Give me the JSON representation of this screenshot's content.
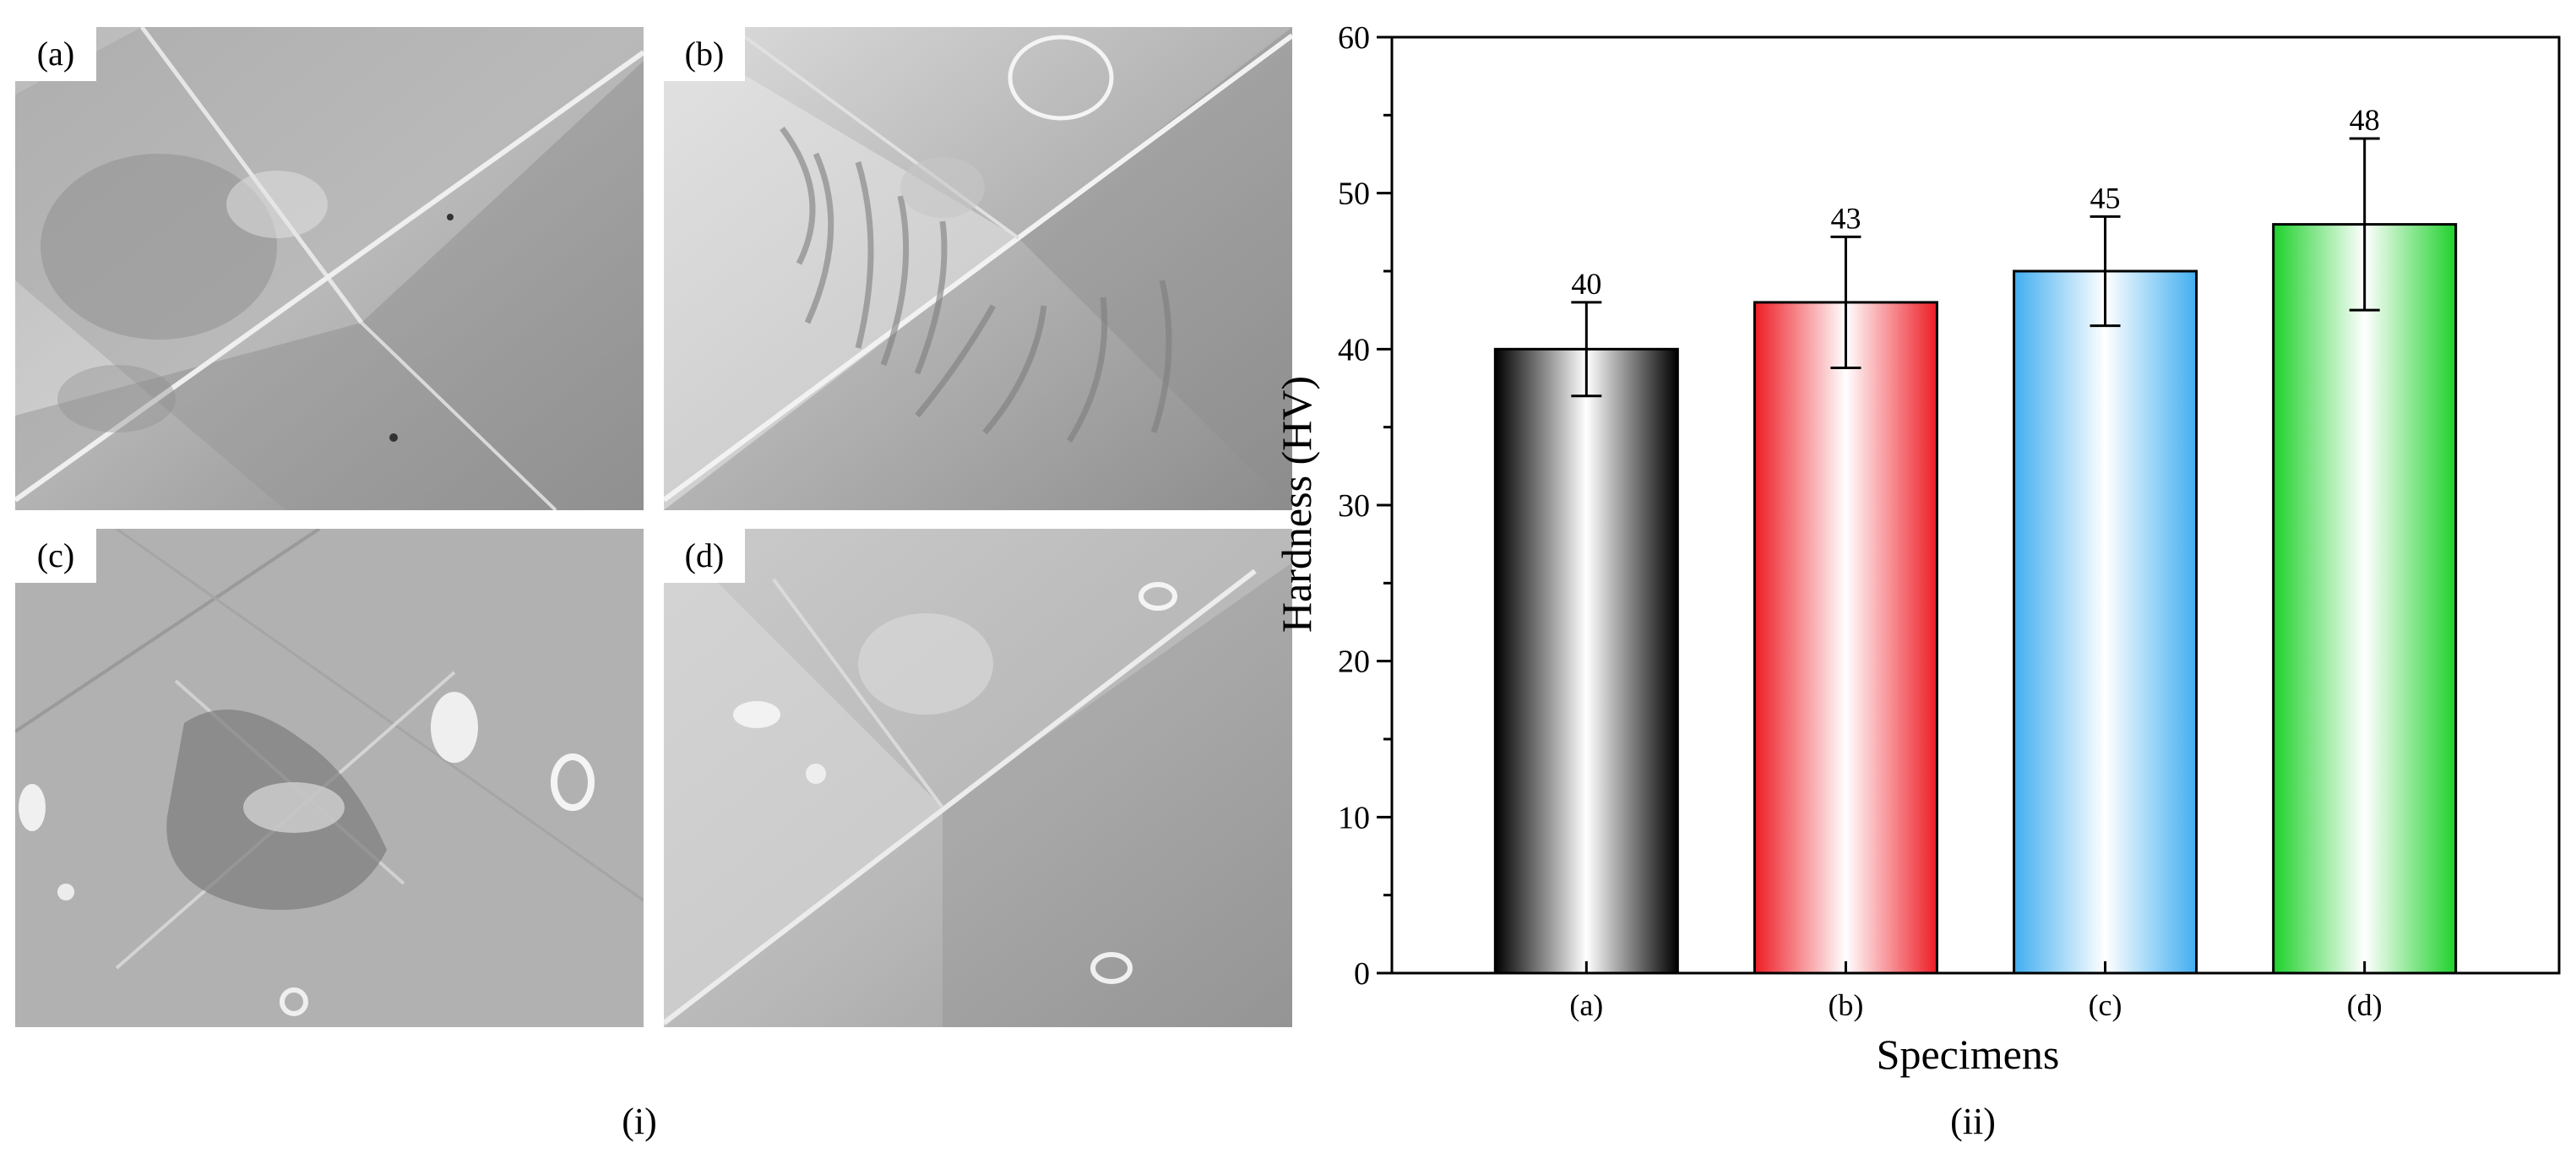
{
  "micrographs": [
    {
      "letter": "(a)"
    },
    {
      "letter": "(b)"
    },
    {
      "letter": "(c)"
    },
    {
      "letter": "(d)"
    }
  ],
  "figure_labels": {
    "left": "(i)",
    "right": "(ii)"
  },
  "chart_data": {
    "type": "bar",
    "categories": [
      "(a)",
      "(b)",
      "(c)",
      "(d)"
    ],
    "values": [
      40,
      43,
      45,
      48
    ],
    "errors": [
      3.0,
      4.2,
      3.5,
      5.5
    ],
    "value_labels": [
      "40",
      "43",
      "45",
      "48"
    ],
    "bar_colors": [
      "#000000",
      "#ee1c25",
      "#41aef0",
      "#1fd12c"
    ],
    "xlabel": "Specimens",
    "ylabel": "Hardness (HV)",
    "ylim": [
      0,
      60
    ],
    "yticks": [
      0,
      10,
      20,
      30,
      40,
      50,
      60
    ],
    "grid": false,
    "legend": "none"
  }
}
